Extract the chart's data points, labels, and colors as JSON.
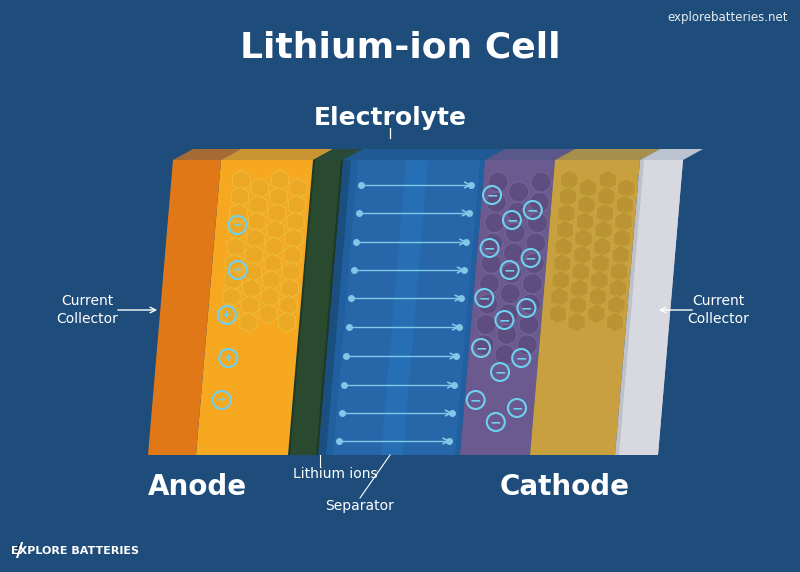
{
  "bg_color": "#1e4d7b",
  "title": "Lithium-ion Cell",
  "watermark": "explorebatteries.net",
  "electrolyte_label": "Electrolyte",
  "anode_label": "Anode",
  "cathode_label": "Cathode",
  "lithium_ions_label": "Lithium ions",
  "separator_label": "Separator",
  "current_collector_left": "Current\nCollector",
  "current_collector_right": "Current\nCollector",
  "explore_batteries": "EXPLORE BATTERIES",
  "cc_left_color": "#E07818",
  "anode_orange": "#F5A820",
  "anode_dark": "#2a4a30",
  "electrolyte_dark": "#1a4f80",
  "electrolyte_mid": "#2060a0",
  "electrolyte_light": "#3070b8",
  "separator_color": "#2878c0",
  "cathode_purple": "#6a5a90",
  "cathode_gold": "#c8a040",
  "cathode_gold_light": "#d4b050",
  "cc_right_color": "#c0c0c8",
  "cc_right_light": "#d8d8e0",
  "ion_color": "#70d0f0",
  "arrow_color": "#80c8e8",
  "hex_anode_face": "#e8a828",
  "hex_anode_edge": "#f0c040",
  "hex_cathode_gold_face": "#b89030",
  "hex_cathode_gold_edge": "#c8a840",
  "hex_cathode_purple_face": "#5a4a7a",
  "hex_cathode_purple_edge": "#7a6a9a"
}
